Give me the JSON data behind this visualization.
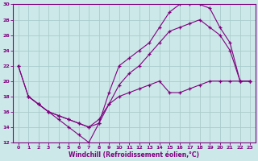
{
  "xlabel": "Windchill (Refroidissement éolien,°C)",
  "bg_color": "#cce8e8",
  "grid_color": "#aacccc",
  "line_color": "#800080",
  "xlim": [
    -0.5,
    23.5
  ],
  "ylim": [
    12,
    30
  ],
  "xticks": [
    0,
    1,
    2,
    3,
    4,
    5,
    6,
    7,
    8,
    9,
    10,
    11,
    12,
    13,
    14,
    15,
    16,
    17,
    18,
    19,
    20,
    21,
    22,
    23
  ],
  "yticks": [
    12,
    14,
    16,
    18,
    20,
    22,
    24,
    26,
    28,
    30
  ],
  "curve1_x": [
    0,
    1,
    2,
    3,
    4,
    5,
    6,
    7,
    8,
    9,
    10,
    11,
    12,
    13,
    14,
    15,
    16,
    17,
    18,
    19,
    20,
    21,
    22,
    23
  ],
  "curve1_y": [
    22,
    18,
    17,
    16,
    15,
    14,
    13,
    12,
    14.5,
    18.5,
    22,
    23,
    24,
    25,
    27,
    29,
    30,
    30,
    30,
    29.5,
    27,
    25,
    20,
    20
  ],
  "curve2_x": [
    0,
    1,
    2,
    3,
    4,
    5,
    6,
    7,
    8,
    9,
    10,
    11,
    12,
    13,
    14,
    15,
    16,
    17,
    18,
    19,
    20,
    21,
    22,
    23
  ],
  "curve2_y": [
    22,
    18,
    17,
    16,
    15.5,
    15,
    14.5,
    14,
    15,
    17,
    19.5,
    21,
    22,
    23.5,
    25,
    26.5,
    27,
    27.5,
    28,
    27,
    26,
    24,
    20,
    20
  ],
  "curve3_x": [
    1,
    2,
    3,
    4,
    5,
    6,
    7,
    8,
    9,
    10,
    11,
    12,
    13,
    14,
    15,
    16,
    17,
    18,
    19,
    20,
    21,
    22,
    23
  ],
  "curve3_y": [
    18,
    17,
    16,
    15.5,
    15,
    14.5,
    14,
    14.5,
    17,
    18,
    18.5,
    19,
    19.5,
    20,
    18.5,
    18.5,
    19,
    19.5,
    20,
    20,
    20,
    20,
    20
  ]
}
